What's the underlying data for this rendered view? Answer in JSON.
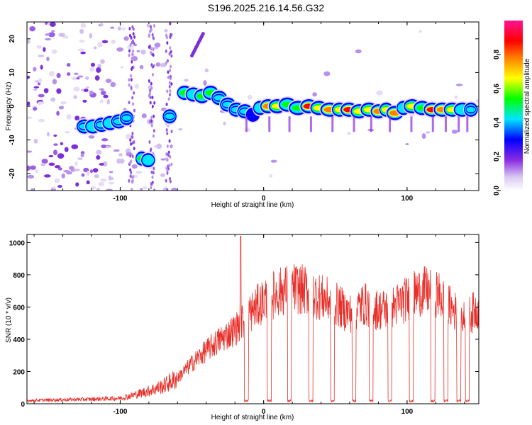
{
  "title": "S196.2025.216.14.56.G32",
  "colors": {
    "snr_line": "#e8302a",
    "frame": "#000000",
    "spectrogram_scale": [
      "#ffffff",
      "#d9c8f2",
      "#8a2be2",
      "#0000ff",
      "#00e5ff",
      "#00ff00",
      "#ffff00",
      "#ff8000",
      "#ff0000",
      "#ff00aa"
    ]
  },
  "chart_data": [
    {
      "type": "heatmap",
      "xlabel": "Height of straight line (km)",
      "ylabel": "Frequency (Hz)",
      "xlim": [
        -165,
        150
      ],
      "ylim": [
        -25,
        25
      ],
      "xticks": [
        -100,
        0,
        100
      ],
      "yticks": [
        -20,
        -10,
        0,
        10,
        20
      ],
      "colorbar": {
        "label": "Normalized spectral amplitude",
        "range": [
          0,
          1
        ],
        "ticks": [
          "0.0",
          "0.2",
          "0.4",
          "0.6",
          "0.8"
        ]
      },
      "ridge": [
        {
          "x": -128,
          "f": -6,
          "a": 0.5
        },
        {
          "x": -122,
          "f": -6,
          "a": 0.55
        },
        {
          "x": -116,
          "f": -5.5,
          "a": 0.5
        },
        {
          "x": -110,
          "f": -5,
          "a": 0.55
        },
        {
          "x": -104,
          "f": -4.5,
          "a": 0.5
        },
        {
          "x": -98,
          "f": -3.5,
          "a": 0.45
        },
        {
          "x": -87,
          "f": -15.5,
          "a": 0.6
        },
        {
          "x": -83,
          "f": -16,
          "a": 0.55
        },
        {
          "x": -68,
          "f": -3,
          "a": 0.5
        },
        {
          "x": -58,
          "f": 4,
          "a": 0.6
        },
        {
          "x": -52,
          "f": 3.5,
          "a": 0.55
        },
        {
          "x": -46,
          "f": 3,
          "a": 0.6
        },
        {
          "x": -40,
          "f": 4,
          "a": 0.65
        },
        {
          "x": -34,
          "f": 2.5,
          "a": 0.5
        },
        {
          "x": -28,
          "f": 0.5,
          "a": 0.45
        },
        {
          "x": -22,
          "f": -1,
          "a": 0.45
        },
        {
          "x": -16,
          "f": -1.5,
          "a": 0.45
        },
        {
          "x": -10,
          "f": -2.5,
          "a": 0.4
        },
        {
          "x": -5,
          "f": -0.5,
          "a": 0.55
        },
        {
          "x": 0,
          "f": 0,
          "a": 0.85
        },
        {
          "x": 6,
          "f": 0,
          "a": 0.75
        },
        {
          "x": 13,
          "f": 0.5,
          "a": 0.6
        },
        {
          "x": 20,
          "f": -0.5,
          "a": 0.65
        },
        {
          "x": 28,
          "f": 0,
          "a": 0.9
        },
        {
          "x": 35,
          "f": -0.5,
          "a": 0.7
        },
        {
          "x": 42,
          "f": -1,
          "a": 0.85
        },
        {
          "x": 50,
          "f": -1,
          "a": 0.75
        },
        {
          "x": 56,
          "f": -1,
          "a": 0.9
        },
        {
          "x": 63,
          "f": -1.5,
          "a": 0.7
        },
        {
          "x": 70,
          "f": -1,
          "a": 0.7
        },
        {
          "x": 77,
          "f": -1.5,
          "a": 0.85
        },
        {
          "x": 83,
          "f": -1,
          "a": 0.7
        },
        {
          "x": 88,
          "f": -2,
          "a": 0.85
        },
        {
          "x": 95,
          "f": -0.5,
          "a": 0.55
        },
        {
          "x": 100,
          "f": 0,
          "a": 0.75
        },
        {
          "x": 107,
          "f": -0.5,
          "a": 0.65
        },
        {
          "x": 114,
          "f": -1,
          "a": 0.9
        },
        {
          "x": 121,
          "f": -1,
          "a": 0.85
        },
        {
          "x": 128,
          "f": -1,
          "a": 0.7
        },
        {
          "x": 135,
          "f": -1,
          "a": 0.55
        },
        {
          "x": 142,
          "f": -1,
          "a": 0.5
        }
      ]
    },
    {
      "type": "line",
      "xlabel": "Height of straight line (km)",
      "ylabel": "SNR (10 * v/v)",
      "xlim": [
        -165,
        150
      ],
      "ylim": [
        0,
        1050
      ],
      "xticks": [
        -100,
        0,
        100
      ],
      "yticks": [
        0,
        200,
        400,
        600,
        800,
        1000
      ],
      "envelope": [
        {
          "x": -165,
          "y": 20
        },
        {
          "x": -140,
          "y": 25
        },
        {
          "x": -120,
          "y": 28
        },
        {
          "x": -100,
          "y": 35
        },
        {
          "x": -90,
          "y": 55
        },
        {
          "x": -80,
          "y": 80
        },
        {
          "x": -70,
          "y": 110
        },
        {
          "x": -60,
          "y": 160
        },
        {
          "x": -50,
          "y": 250
        },
        {
          "x": -40,
          "y": 330
        },
        {
          "x": -30,
          "y": 400
        },
        {
          "x": -20,
          "y": 460
        },
        {
          "x": -10,
          "y": 560
        },
        {
          "x": 0,
          "y": 640
        },
        {
          "x": 10,
          "y": 690
        },
        {
          "x": 20,
          "y": 720
        },
        {
          "x": 30,
          "y": 700
        },
        {
          "x": 40,
          "y": 660
        },
        {
          "x": 50,
          "y": 620
        },
        {
          "x": 60,
          "y": 560
        },
        {
          "x": 70,
          "y": 620
        },
        {
          "x": 80,
          "y": 580
        },
        {
          "x": 90,
          "y": 600
        },
        {
          "x": 100,
          "y": 650
        },
        {
          "x": 110,
          "y": 700
        },
        {
          "x": 120,
          "y": 690
        },
        {
          "x": 130,
          "y": 600
        },
        {
          "x": 140,
          "y": 520
        },
        {
          "x": 150,
          "y": 600
        }
      ],
      "spikes": [
        {
          "x": -16,
          "y": 1040
        }
      ],
      "dips": [
        -12,
        4,
        18,
        33,
        48,
        63,
        75,
        88,
        103,
        118,
        127,
        136,
        142
      ]
    }
  ]
}
